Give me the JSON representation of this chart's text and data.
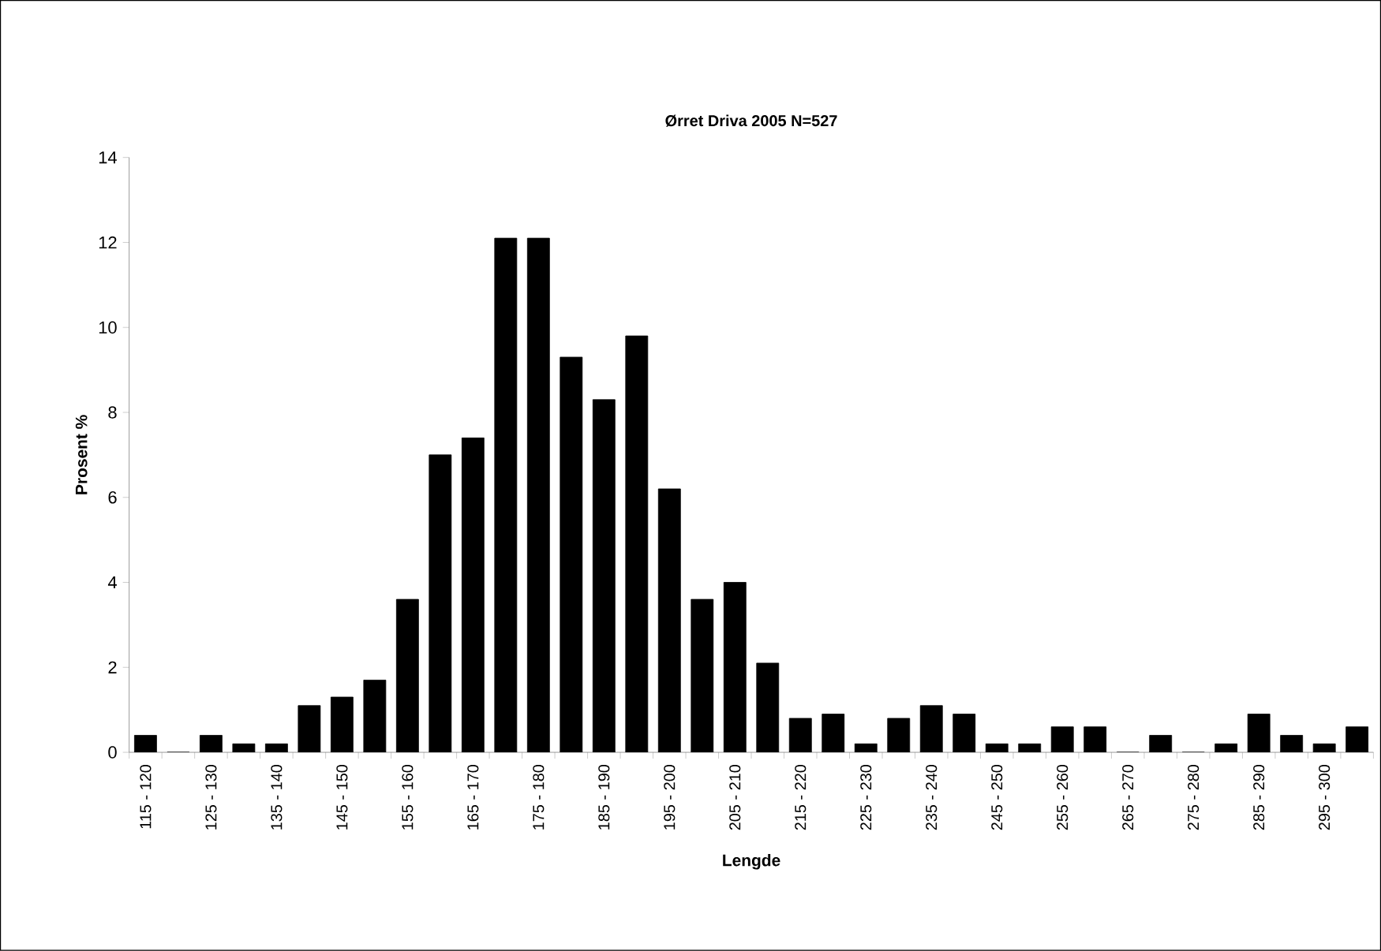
{
  "chart_data": {
    "type": "bar",
    "title": "Ørret Driva 2005 N=527",
    "xlabel": "Lengde",
    "ylabel": "Prosent %",
    "categories": [
      "115 - 120",
      null,
      "125 - 130",
      null,
      "135 - 140",
      null,
      "145 - 150",
      null,
      "155 - 160",
      null,
      "165 - 170",
      null,
      "175 - 180",
      null,
      "185 - 190",
      null,
      "195 - 200",
      null,
      "205 - 210",
      null,
      "215 - 220",
      null,
      "225 - 230",
      null,
      "235 - 240",
      null,
      "245 - 250",
      null,
      "255 - 260",
      null,
      "265 - 270",
      null,
      "275 - 280",
      null,
      "285 - 290",
      null,
      "295 - 300",
      null
    ],
    "values": [
      0.4,
      0,
      0.4,
      0.2,
      0.2,
      1.1,
      1.3,
      1.7,
      3.6,
      7.0,
      7.4,
      12.1,
      12.1,
      9.3,
      8.3,
      9.8,
      6.2,
      3.6,
      4.0,
      2.1,
      0.8,
      0.9,
      0.2,
      0.8,
      1.1,
      0.9,
      0.2,
      0.2,
      0.6,
      0.6,
      0,
      0.4,
      0,
      0.2,
      0.9,
      0.4,
      0.2,
      0.6
    ],
    "color": "#000000",
    "ylim": [
      0,
      14
    ],
    "yticks": [
      0,
      2,
      4,
      6,
      8,
      10,
      12,
      14
    ]
  }
}
